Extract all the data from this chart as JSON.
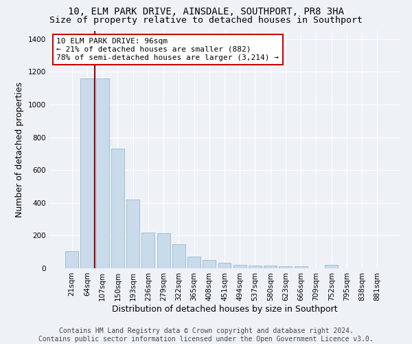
{
  "title_line1": "10, ELM PARK DRIVE, AINSDALE, SOUTHPORT, PR8 3HA",
  "title_line2": "Size of property relative to detached houses in Southport",
  "xlabel": "Distribution of detached houses by size in Southport",
  "ylabel": "Number of detached properties",
  "categories": [
    "21sqm",
    "64sqm",
    "107sqm",
    "150sqm",
    "193sqm",
    "236sqm",
    "279sqm",
    "322sqm",
    "365sqm",
    "408sqm",
    "451sqm",
    "494sqm",
    "537sqm",
    "580sqm",
    "623sqm",
    "666sqm",
    "709sqm",
    "752sqm",
    "795sqm",
    "838sqm",
    "881sqm"
  ],
  "values": [
    105,
    1160,
    1160,
    730,
    420,
    220,
    215,
    148,
    70,
    52,
    35,
    22,
    18,
    15,
    12,
    12,
    0,
    22,
    0,
    0,
    0
  ],
  "bar_color": "#c9daea",
  "bar_edge_color": "#9ab8cc",
  "vline_pos": 1.5,
  "vline_color": "#990000",
  "annotation_text": "10 ELM PARK DRIVE: 96sqm\n← 21% of detached houses are smaller (882)\n78% of semi-detached houses are larger (3,214) →",
  "annotation_box_facecolor": "#ffffff",
  "annotation_box_edgecolor": "#cc0000",
  "ylim": [
    0,
    1450
  ],
  "yticks": [
    0,
    200,
    400,
    600,
    800,
    1000,
    1200,
    1400
  ],
  "bg_color": "#eef2f7",
  "grid_color": "#ffffff",
  "footer_line1": "Contains HM Land Registry data © Crown copyright and database right 2024.",
  "footer_line2": "Contains public sector information licensed under the Open Government Licence v3.0.",
  "title_fontsize": 10,
  "subtitle_fontsize": 9.5,
  "ylabel_fontsize": 9,
  "xlabel_fontsize": 9,
  "tick_fontsize": 7.5,
  "annotation_fontsize": 8,
  "footer_fontsize": 7
}
